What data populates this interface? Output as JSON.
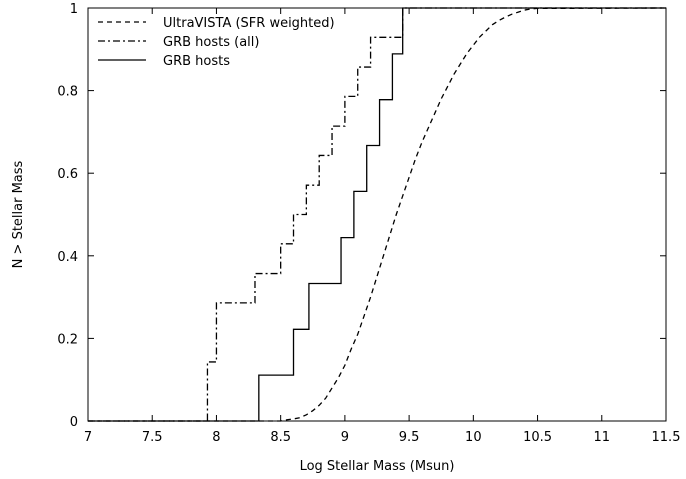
{
  "chart_data": {
    "type": "line",
    "step": true,
    "title": "",
    "xlabel": "Log Stellar Mass (Msun)",
    "ylabel": "N > Stellar Mass",
    "xlim": [
      7,
      11.5
    ],
    "ylim": [
      0,
      1
    ],
    "xticks": [
      7,
      7.5,
      8,
      8.5,
      9,
      9.5,
      10,
      10.5,
      11,
      11.5
    ],
    "xtick_labels": [
      "7",
      "7.5",
      "8",
      "8.5",
      "9",
      "9.5",
      "10",
      "10.5",
      "11",
      "11.5"
    ],
    "yticks": [
      0,
      0.2,
      0.4,
      0.6,
      0.8,
      1
    ],
    "ytick_labels": [
      "0",
      "0.2",
      "0.4",
      "0.6",
      "0.8",
      "1"
    ],
    "grid": false,
    "legend_position": "top-left",
    "series": [
      {
        "name": "UltraVISTA (SFR weighted)",
        "style": "dashed",
        "color": "#000000",
        "points": [
          [
            7,
            0
          ],
          [
            8.5,
            0
          ],
          [
            8.55,
            0.003
          ],
          [
            8.6,
            0.005
          ],
          [
            8.65,
            0.008
          ],
          [
            8.7,
            0.015
          ],
          [
            8.75,
            0.025
          ],
          [
            8.8,
            0.038
          ],
          [
            8.85,
            0.055
          ],
          [
            8.9,
            0.08
          ],
          [
            8.95,
            0.105
          ],
          [
            9.0,
            0.135
          ],
          [
            9.05,
            0.175
          ],
          [
            9.1,
            0.21
          ],
          [
            9.15,
            0.255
          ],
          [
            9.2,
            0.3
          ],
          [
            9.25,
            0.35
          ],
          [
            9.3,
            0.4
          ],
          [
            9.35,
            0.45
          ],
          [
            9.4,
            0.5
          ],
          [
            9.45,
            0.545
          ],
          [
            9.5,
            0.59
          ],
          [
            9.55,
            0.635
          ],
          [
            9.6,
            0.675
          ],
          [
            9.65,
            0.71
          ],
          [
            9.7,
            0.745
          ],
          [
            9.75,
            0.78
          ],
          [
            9.8,
            0.81
          ],
          [
            9.85,
            0.84
          ],
          [
            9.9,
            0.865
          ],
          [
            9.95,
            0.89
          ],
          [
            10.0,
            0.91
          ],
          [
            10.05,
            0.93
          ],
          [
            10.1,
            0.945
          ],
          [
            10.15,
            0.96
          ],
          [
            10.2,
            0.97
          ],
          [
            10.25,
            0.978
          ],
          [
            10.3,
            0.985
          ],
          [
            10.35,
            0.99
          ],
          [
            10.4,
            0.995
          ],
          [
            10.45,
            0.998
          ],
          [
            10.5,
            0.999
          ],
          [
            11.5,
            1.0
          ]
        ]
      },
      {
        "name": "GRB hosts (all)",
        "style": "dashdot",
        "color": "#000000",
        "points": [
          [
            7,
            0
          ],
          [
            7.93,
            0
          ],
          [
            7.93,
            0.143
          ],
          [
            8.0,
            0.143
          ],
          [
            8.0,
            0.286
          ],
          [
            8.3,
            0.286
          ],
          [
            8.3,
            0.357
          ],
          [
            8.5,
            0.357
          ],
          [
            8.5,
            0.429
          ],
          [
            8.6,
            0.429
          ],
          [
            8.6,
            0.5
          ],
          [
            8.7,
            0.5
          ],
          [
            8.7,
            0.571
          ],
          [
            8.8,
            0.571
          ],
          [
            8.8,
            0.643
          ],
          [
            8.9,
            0.643
          ],
          [
            8.9,
            0.714
          ],
          [
            9.0,
            0.714
          ],
          [
            9.0,
            0.786
          ],
          [
            9.1,
            0.786
          ],
          [
            9.1,
            0.857
          ],
          [
            9.2,
            0.857
          ],
          [
            9.2,
            0.929
          ],
          [
            9.45,
            0.929
          ],
          [
            9.45,
            1.0
          ],
          [
            11.5,
            1.0
          ]
        ]
      },
      {
        "name": "GRB hosts",
        "style": "solid",
        "color": "#000000",
        "points": [
          [
            7,
            0
          ],
          [
            8.33,
            0
          ],
          [
            8.33,
            0.111
          ],
          [
            8.6,
            0.111
          ],
          [
            8.6,
            0.222
          ],
          [
            8.72,
            0.222
          ],
          [
            8.72,
            0.333
          ],
          [
            8.97,
            0.333
          ],
          [
            8.97,
            0.444
          ],
          [
            9.07,
            0.444
          ],
          [
            9.07,
            0.556
          ],
          [
            9.17,
            0.556
          ],
          [
            9.17,
            0.667
          ],
          [
            9.27,
            0.667
          ],
          [
            9.27,
            0.778
          ],
          [
            9.37,
            0.778
          ],
          [
            9.37,
            0.889
          ],
          [
            9.45,
            0.889
          ],
          [
            9.45,
            1.0
          ],
          [
            11.5,
            1.0
          ]
        ]
      }
    ]
  }
}
